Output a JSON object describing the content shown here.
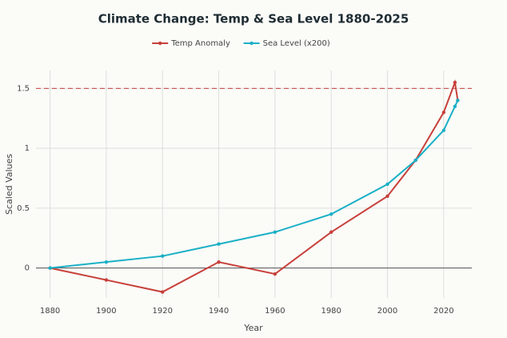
{
  "chart_data": {
    "type": "line",
    "title": "Climate Change: Temp & Sea Level 1880-2025",
    "x_label": "Year",
    "y_label": "Scaled Values",
    "x": [
      1880,
      1900,
      1920,
      1940,
      1960,
      1980,
      2000,
      2010,
      2020,
      2024,
      2025
    ],
    "series": [
      {
        "name": "Temp Anomaly",
        "color": "#c8403a",
        "values": [
          0,
          -0.1,
          -0.2,
          0.05,
          -0.05,
          0.3,
          0.6,
          0.9,
          1.3,
          1.55,
          1.4
        ]
      },
      {
        "name": "Sea Level (x200)",
        "color": "#1ab0c6",
        "values": [
          0,
          0.05,
          0.1,
          0.2,
          0.3,
          0.45,
          0.7,
          0.9,
          1.15,
          1.35,
          1.4
        ]
      }
    ],
    "xlim": [
      1875,
      2030
    ],
    "xticks": [
      1880,
      1900,
      1920,
      1940,
      1960,
      1980,
      2000,
      2020
    ],
    "ylim": [
      -0.25,
      1.65
    ],
    "yticks": [
      0,
      0.5,
      1,
      1.5
    ],
    "reference_line": {
      "y": 1.5,
      "color": "#c8403a"
    },
    "grid": true,
    "legend": "top"
  }
}
